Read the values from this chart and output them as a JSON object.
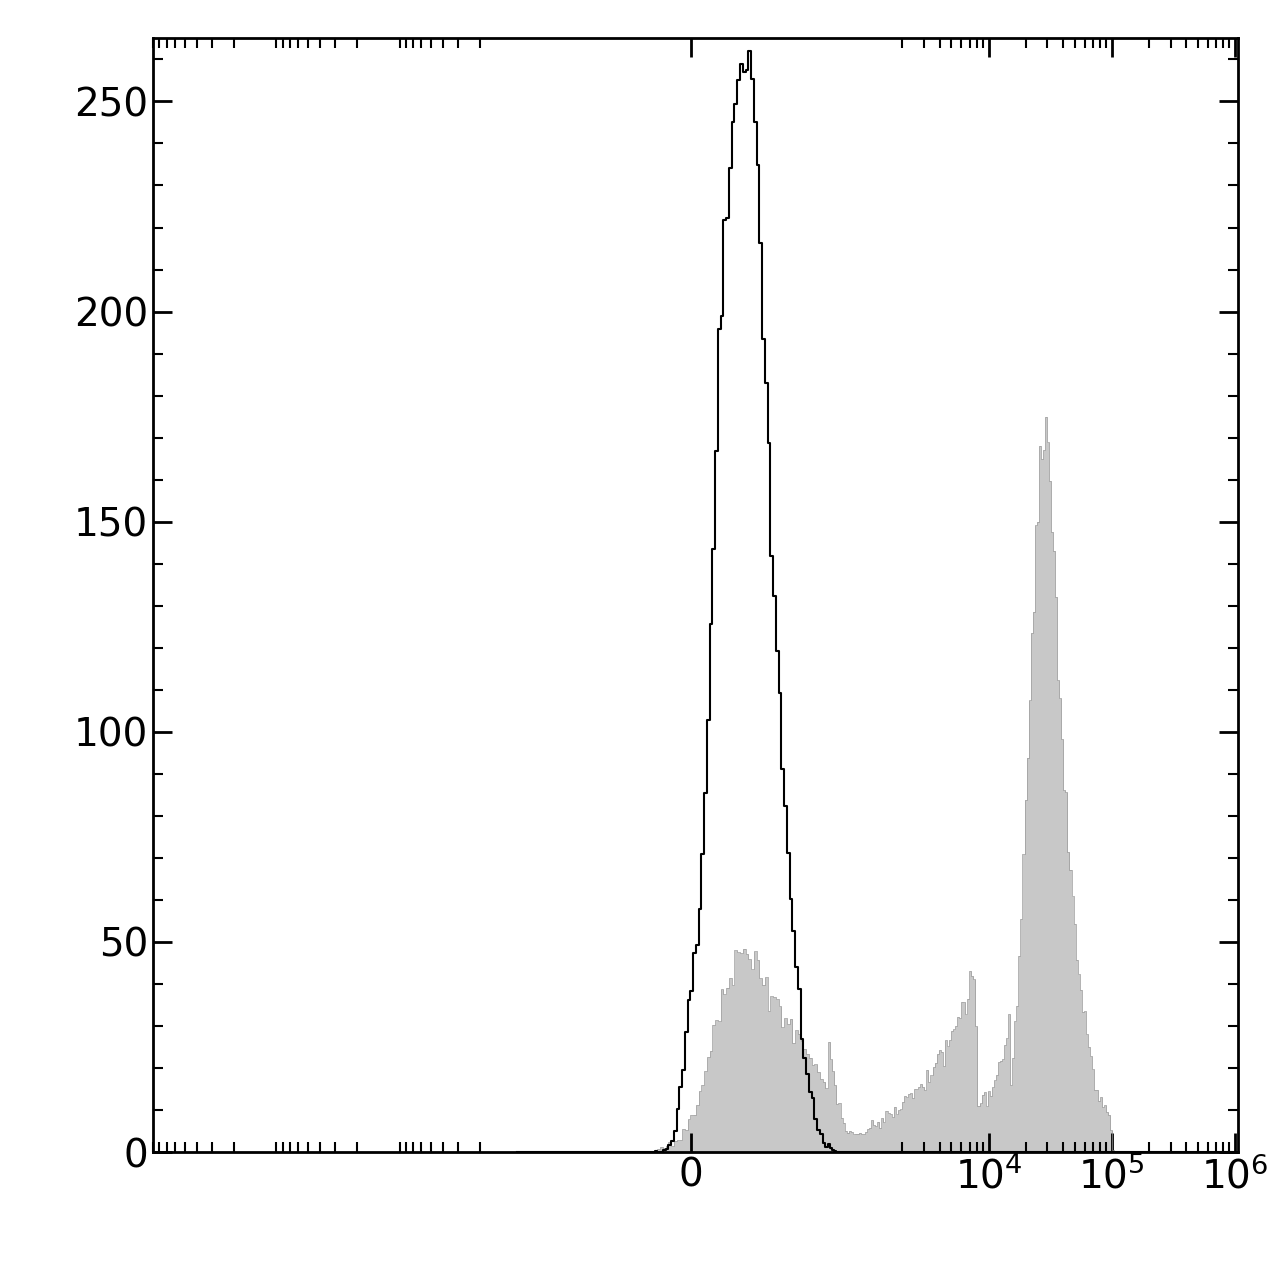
{
  "ylim": [
    0,
    265
  ],
  "yticks": [
    0,
    50,
    100,
    150,
    200,
    250
  ],
  "background_color": "#ffffff",
  "black_hist_color": "#000000",
  "gray_hist_color": "#c8c8c8",
  "gray_hist_edge_color": "#999999",
  "tick_fontsize": 28,
  "spine_linewidth": 2.0,
  "linthresh": 500,
  "linscale": 1.0
}
